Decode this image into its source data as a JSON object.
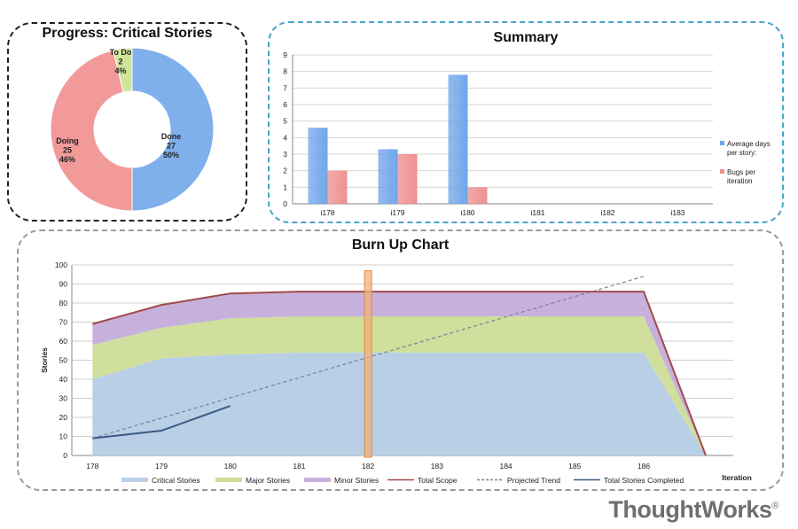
{
  "brand": {
    "logo_text": "ThoughtWorks",
    "logo_mark": "®"
  },
  "colors": {
    "done": "#7fb0ec",
    "doing": "#f29a9a",
    "todo": "#cfe69a",
    "avg": "#6fa6ea",
    "bugs": "#ef8f8f",
    "critical": "#b9cfe6",
    "major": "#d0df9c",
    "minor": "#c7b1dc",
    "scope": "#a24a4a",
    "trend": "#7d7d9a",
    "completed": "#3a5a84",
    "marker": "#f0b07a"
  },
  "chart_data": [
    {
      "type": "pie",
      "title": "Progress: Critical Stories",
      "slices": [
        {
          "label": "Done",
          "value": 27,
          "percent": "50%"
        },
        {
          "label": "Doing",
          "value": 25,
          "percent": "46%"
        },
        {
          "label": "To Do",
          "value": 2,
          "percent": "4%"
        }
      ]
    },
    {
      "type": "bar",
      "title": "Summary",
      "categories": [
        "i178",
        "i179",
        "i180",
        "i181",
        "i182",
        "i183"
      ],
      "series": [
        {
          "name": "Average days per story",
          "legend_lines": [
            "Average days",
            "per story:"
          ],
          "values": [
            4.6,
            3.3,
            7.8,
            null,
            null,
            null
          ]
        },
        {
          "name": "Bugs per iteration",
          "legend_lines": [
            "Bugs per",
            "iteration"
          ],
          "values": [
            2,
            3,
            1,
            null,
            null,
            null
          ]
        }
      ],
      "ylim": [
        0,
        9
      ],
      "yticks": [
        0,
        1,
        2,
        3,
        4,
        5,
        6,
        7,
        8,
        9
      ],
      "grid": true,
      "legend": "right"
    },
    {
      "type": "area",
      "title": "Burn Up Chart",
      "xlabel": "Iteration",
      "ylabel": "Stories",
      "x_ticks": [
        "178",
        "179",
        "180",
        "181",
        "182",
        "183",
        "184",
        "185",
        "186"
      ],
      "ylim": [
        0,
        100
      ],
      "yticks": [
        0,
        10,
        20,
        30,
        40,
        50,
        60,
        70,
        80,
        90,
        100
      ],
      "x": [
        178,
        179,
        180,
        181,
        182,
        183,
        184,
        185,
        186,
        186.9
      ],
      "stack": [
        {
          "name": "Critical Stories",
          "values": [
            40,
            51,
            53,
            54,
            54,
            54,
            54,
            54,
            54,
            0
          ]
        },
        {
          "name": "Major Stories",
          "values": [
            18,
            16,
            19,
            19,
            19,
            19,
            19,
            19,
            19,
            0
          ]
        },
        {
          "name": "Minor Stories",
          "values": [
            11,
            12,
            13,
            13,
            13,
            13,
            13,
            13,
            13,
            0
          ]
        }
      ],
      "lines": [
        {
          "name": "Total Scope",
          "x": [
            178,
            179,
            180,
            181,
            182,
            183,
            184,
            185,
            186,
            186.9
          ],
          "values": [
            69,
            79,
            85,
            86,
            86,
            86,
            86,
            86,
            86,
            0
          ]
        },
        {
          "name": "Projected Trend",
          "x": [
            178,
            186
          ],
          "values": [
            9,
            94
          ]
        },
        {
          "name": "Total Stories Completed",
          "x": [
            178,
            179,
            180
          ],
          "values": [
            9,
            13,
            26
          ]
        }
      ],
      "current_iteration": 182,
      "grid": true,
      "legend": "bottom"
    }
  ]
}
